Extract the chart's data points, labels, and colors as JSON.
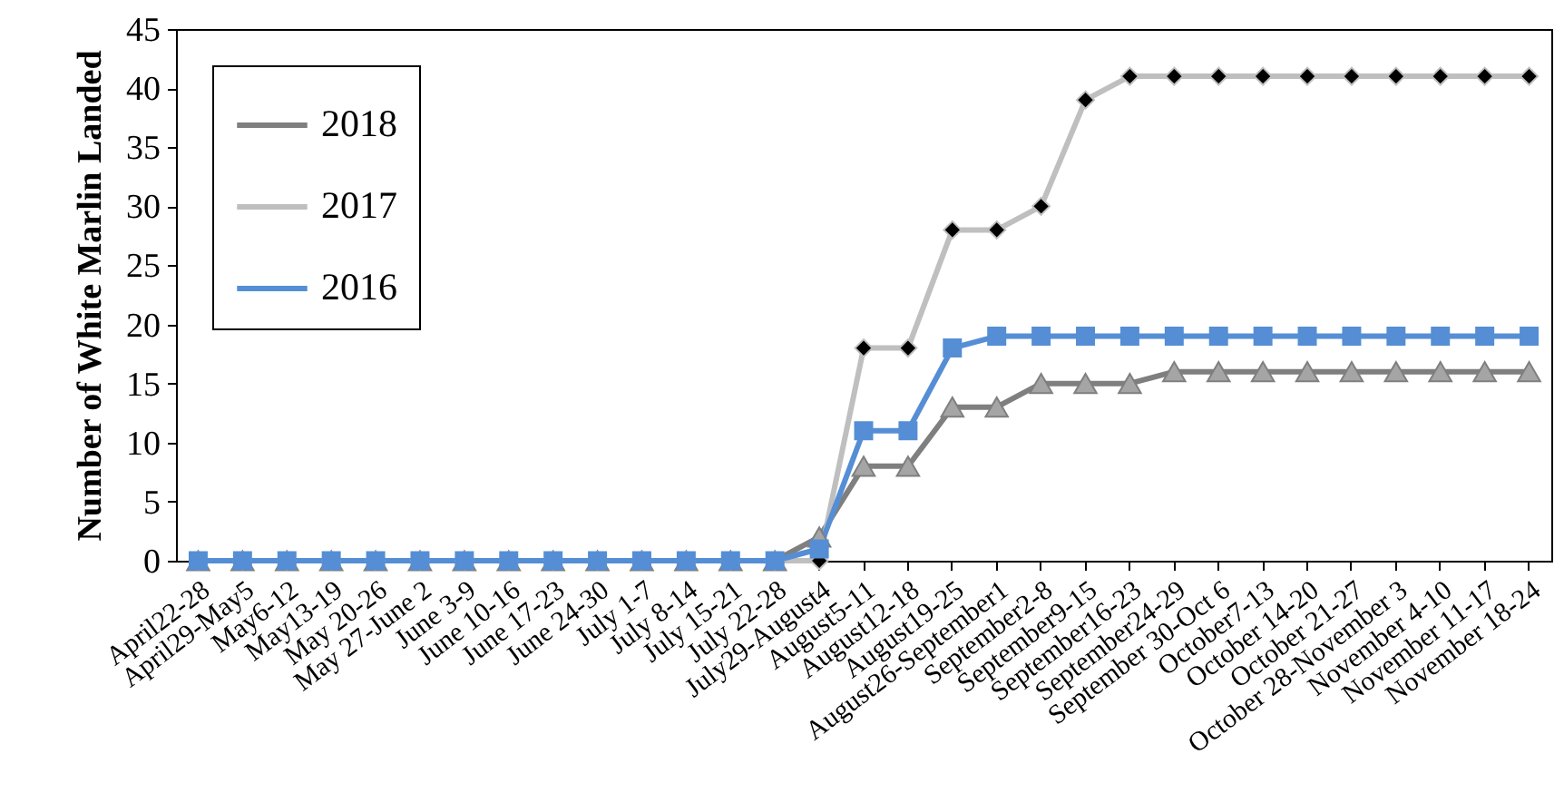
{
  "chart_data": {
    "type": "line",
    "ylabel": "Number of White Marlin Landed",
    "categories": [
      "April22-28",
      "April29-May5",
      "May6-12",
      "May13-19",
      "May 20-26",
      "May 27-June 2",
      "June 3-9",
      "June 10-16",
      "June 17-23",
      "June 24-30",
      "July 1-7",
      "July 8-14",
      "July 15-21",
      "July 22-28",
      "July29-August4",
      "August5-11",
      "August12-18",
      "August19-25",
      "August26-September1",
      "September2-8",
      "September9-15",
      "September16-23",
      "September24-29",
      "September 30-Oct 6",
      "October7-13",
      "October 14-20",
      "October 21-27",
      "October 28-November 3",
      "November 4-10",
      "November 11-17",
      "November 18-24"
    ],
    "ylim": [
      0,
      45
    ],
    "yticks": [
      0,
      5,
      10,
      15,
      20,
      25,
      30,
      35,
      40,
      45
    ],
    "grid": false,
    "legend": "top left",
    "line_style": "solid",
    "series": [
      {
        "name": "2018",
        "color": "#7f7f7f",
        "marker": "triangle",
        "colors": [
          "#a5a5a5",
          "#a5a5a5",
          "#a5a5a5",
          "#a5a5a5",
          "#a5a5a5",
          "#a5a5a5",
          "#a5a5a5",
          "#a5a5a5",
          "#a5a5a5",
          "#a5a5a5",
          "#a5a5a5",
          "#a5a5a5",
          "#a5a5a5",
          "#a5a5a5",
          "#a5a5a5",
          "#a5a5a5",
          "#a5a5a5",
          "#a5a5a5",
          "#a5a5a5",
          "#a5a5a5",
          "#a5a5a5",
          "#a5a5a5",
          "#a5a5a5",
          "#a5a5a5",
          "#a5a5a5",
          "#a5a5a5",
          "#a5a5a5",
          "#a5a5a5",
          "#a5a5a5",
          "#a5a5a5",
          "#a5a5a5"
        ],
        "values": [
          0,
          0,
          0,
          0,
          0,
          0,
          0,
          0,
          0,
          0,
          0,
          0,
          0,
          0,
          2,
          8,
          8,
          13,
          13,
          15,
          15,
          15,
          16,
          16,
          16,
          16,
          16,
          16,
          16,
          16,
          16
        ]
      },
      {
        "name": "2017",
        "color": "#bfbfbf",
        "marker": "diamond",
        "colors": [
          "#000000",
          "#000000",
          "#000000",
          "#000000",
          "#000000",
          "#000000",
          "#000000",
          "#000000",
          "#000000",
          "#000000",
          "#000000",
          "#000000",
          "#000000",
          "#000000",
          "#000000",
          "#000000",
          "#000000",
          "#000000",
          "#000000",
          "#000000",
          "#000000",
          "#000000",
          "#000000",
          "#000000",
          "#000000",
          "#000000",
          "#000000",
          "#000000",
          "#000000",
          "#000000",
          "#000000"
        ],
        "values": [
          0,
          0,
          0,
          0,
          0,
          0,
          0,
          0,
          0,
          0,
          0,
          0,
          0,
          0,
          0,
          18,
          18,
          28,
          28,
          30,
          39,
          41,
          41,
          41,
          41,
          41,
          41,
          41,
          41,
          41,
          41
        ]
      },
      {
        "name": "2016",
        "color": "#558ed5",
        "marker": "square",
        "values": [
          0,
          0,
          0,
          0,
          0,
          0,
          0,
          0,
          0,
          0,
          0,
          0,
          0,
          0,
          1,
          11,
          11,
          18,
          19,
          19,
          19,
          19,
          19,
          19,
          19,
          19,
          19,
          19,
          19,
          19,
          19
        ]
      }
    ]
  }
}
